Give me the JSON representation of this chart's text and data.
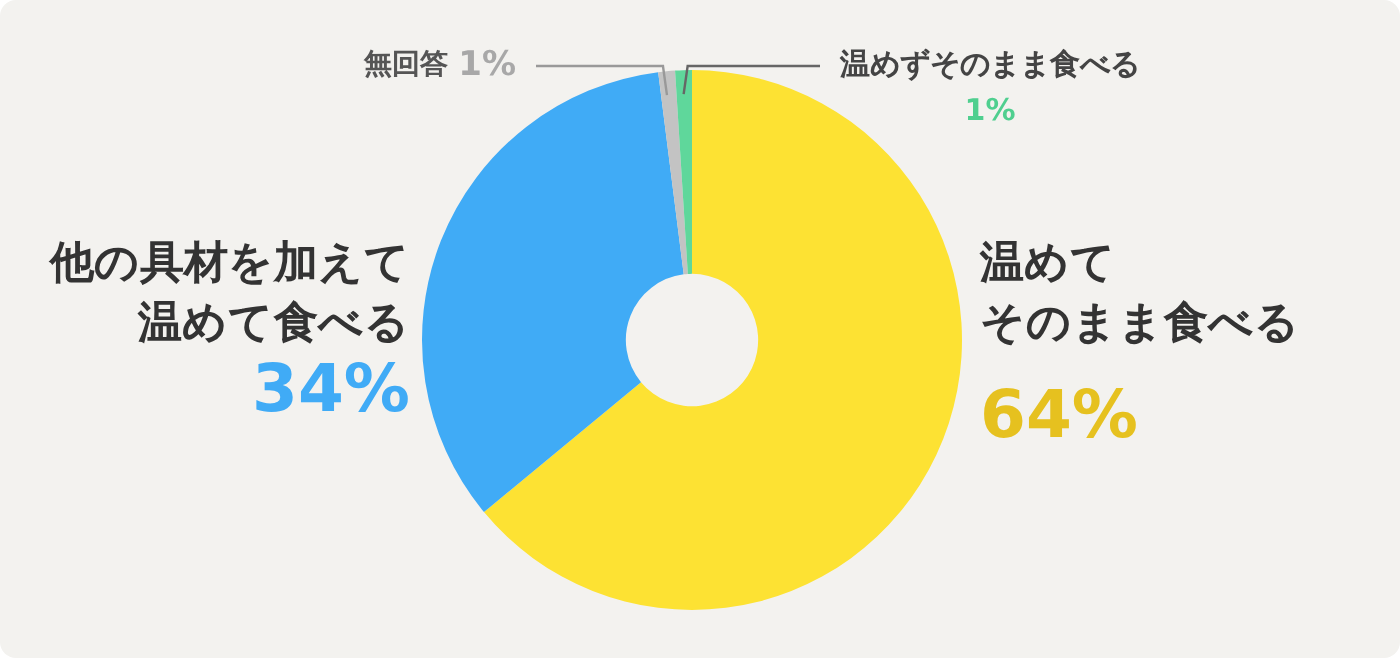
{
  "chart_data": {
    "type": "donut",
    "categories": [
      "温めてそのまま食べる",
      "他の具材を加えて温めて食べる",
      "無回答",
      "温めずそのまま食べる"
    ],
    "values": [
      64,
      34,
      1,
      1
    ],
    "colors": [
      "#fde233",
      "#40abf6",
      "#c3c3c3",
      "#5fd79b"
    ],
    "value_labels": [
      "64%",
      "34%",
      "1%",
      "1%"
    ],
    "legend": false
  }
}
